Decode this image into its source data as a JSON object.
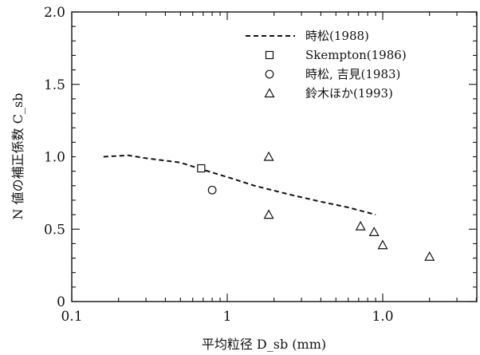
{
  "chart_data": {
    "type": "scatter",
    "xlabel": "平均粒径 D_sb (mm)",
    "ylabel": "N 値の補正係数 C_sb",
    "ylim": [
      0,
      2.0
    ],
    "x_tick_labels": [
      "0.1",
      "1",
      "1.0"
    ],
    "y_tick_labels": [
      "0",
      "0.5",
      "1.0",
      "1.5",
      "2.0"
    ],
    "grid": false,
    "legend_position": "top-right",
    "series": [
      {
        "name": "時松(1988)",
        "marker": "dashed-line",
        "points": [
          [
            0.16,
            1.0
          ],
          [
            0.23,
            1.01
          ],
          [
            0.3,
            0.99
          ],
          [
            0.5,
            0.96
          ],
          [
            0.7,
            0.91
          ],
          [
            1.0,
            0.86
          ],
          [
            1.5,
            0.8
          ],
          [
            2.5,
            0.74
          ],
          [
            4.0,
            0.69
          ],
          [
            6.0,
            0.65
          ],
          [
            9.0,
            0.6
          ]
        ]
      },
      {
        "name": "Skempton(1986)",
        "marker": "square",
        "points": [
          [
            0.68,
            0.92
          ]
        ]
      },
      {
        "name": "時松, 吉見(1983)",
        "marker": "circle",
        "points": [
          [
            0.8,
            0.77
          ]
        ]
      },
      {
        "name": "鈴木ほか(1993)",
        "marker": "triangle",
        "points": [
          [
            1.85,
            1.0
          ],
          [
            1.85,
            0.6
          ],
          [
            7.2,
            0.52
          ],
          [
            8.8,
            0.48
          ],
          [
            10.0,
            0.39
          ],
          [
            20.0,
            0.31
          ]
        ]
      }
    ]
  }
}
